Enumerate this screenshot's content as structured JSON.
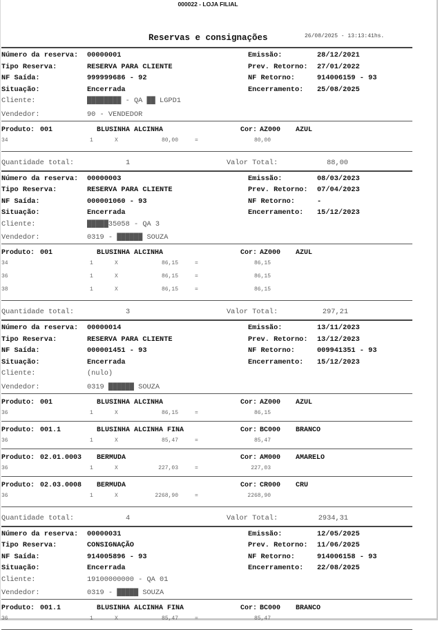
{
  "header": {
    "store": "000022 - LOJA FILIAL",
    "title": "Reservas e consignações",
    "timestamp": "26/08/2025 - 13:13:41hs."
  },
  "labels": {
    "numero": "Número da reserva:",
    "tipo": "Tipo Reserva:",
    "nf_saida": "NF Saída:",
    "situacao": "Situação:",
    "cliente": "Cliente:",
    "vendedor": "Vendedor:",
    "emissao": "Emissão:",
    "prev_retorno": "Prev. Retorno:",
    "nf_retorno": "NF Retorno:",
    "encerramento": "Encerramento:",
    "produto": "Produto:",
    "cor": "Cor:",
    "qtd_total": "Quantidade total:",
    "valor_total": "Valor Total:",
    "x": "X",
    "eq": "="
  },
  "reservas": [
    {
      "numero": "00000001",
      "tipo": "RESERVA PARA CLIENTE",
      "nf_saida": "999999686 - 92",
      "situacao": "Encerrada",
      "cliente": "████████ - QA ██ LGPD1",
      "vendedor": "90 - VENDEDOR",
      "emissao": "28/12/2021",
      "prev_retorno": "27/01/2022",
      "nf_retorno": "914006159 - 93",
      "encerramento": "25/08/2025",
      "produtos": [
        {
          "codigo": "001",
          "descricao": "BLUSINHA ALCINHA",
          "cor_codigo": "AZ000",
          "cor_nome": "AZUL",
          "itens": [
            {
              "tamanho": "34",
              "qtd": "1",
              "preco": "80,00",
              "total": "80,00"
            }
          ]
        }
      ],
      "qtd_total": "1",
      "valor_total": "88,00"
    },
    {
      "numero": "00000003",
      "tipo": "RESERVA PARA CLIENTE",
      "nf_saida": "000001060 - 93",
      "situacao": "Encerrada",
      "cliente": "█████35058 - QA 3",
      "vendedor": "0319 - ██████ SOUZA",
      "emissao": "08/03/2023",
      "prev_retorno": "07/04/2023",
      "nf_retorno": "-",
      "encerramento": "15/12/2023",
      "produtos": [
        {
          "codigo": "001",
          "descricao": "BLUSINHA ALCINHA",
          "cor_codigo": "AZ000",
          "cor_nome": "AZUL",
          "itens": [
            {
              "tamanho": "34",
              "qtd": "1",
              "preco": "86,15",
              "total": "86,15"
            },
            {
              "tamanho": "36",
              "qtd": "1",
              "preco": "86,15",
              "total": "86,15"
            },
            {
              "tamanho": "38",
              "qtd": "1",
              "preco": "86,15",
              "total": "86,15"
            }
          ]
        }
      ],
      "qtd_total": "3",
      "valor_total": "297,21"
    },
    {
      "numero": "00000014",
      "tipo": "RESERVA PARA CLIENTE",
      "nf_saida": "000001451 - 93",
      "situacao": "Encerrada",
      "cliente": "(nulo)",
      "vendedor": "0319 ██████ SOUZA",
      "emissao": "13/11/2023",
      "prev_retorno": "13/12/2023",
      "nf_retorno": "009941351 - 93",
      "encerramento": "15/12/2023",
      "produtos": [
        {
          "codigo": "001",
          "descricao": "BLUSINHA ALCINHA",
          "cor_codigo": "AZ000",
          "cor_nome": "AZUL",
          "itens": [
            {
              "tamanho": "36",
              "qtd": "1",
              "preco": "86,15",
              "total": "86,15"
            }
          ]
        },
        {
          "codigo": "001.1",
          "descricao": "BLUSINHA ALCINHA FINA",
          "cor_codigo": "BC000",
          "cor_nome": "BRANCO",
          "itens": [
            {
              "tamanho": "36",
              "qtd": "1",
              "preco": "85,47",
              "total": "85,47"
            }
          ]
        },
        {
          "codigo": "02.01.0003",
          "descricao": "BERMUDA",
          "cor_codigo": "AM000",
          "cor_nome": "AMARELO",
          "itens": [
            {
              "tamanho": "36",
              "qtd": "1",
              "preco": "227,03",
              "total": "227,03"
            }
          ]
        },
        {
          "codigo": "02.03.0008",
          "descricao": "BERMUDA",
          "cor_codigo": "CR000",
          "cor_nome": "CRU",
          "itens": [
            {
              "tamanho": "36",
              "qtd": "1",
              "preco": "2268,90",
              "total": "2268,90"
            }
          ]
        }
      ],
      "qtd_total": "4",
      "valor_total": "2934,31"
    },
    {
      "numero": "00000031",
      "tipo": "CONSIGNAÇÃO",
      "nf_saida": "914005896 - 93",
      "situacao": "Encerrada",
      "cliente": "19100000000 - QA 01",
      "vendedor": "0319 - █████ SOUZA",
      "emissao": "12/05/2025",
      "prev_retorno": "11/06/2025",
      "nf_retorno": "914006158 - 93",
      "encerramento": "22/08/2025",
      "produtos": [
        {
          "codigo": "001.1",
          "descricao": "BLUSINHA ALCINHA FINA",
          "cor_codigo": "BC000",
          "cor_nome": "BRANCO",
          "itens": [
            {
              "tamanho": "36",
              "qtd": "1",
              "preco": "85,47",
              "total": "85,47"
            }
          ]
        }
      ]
    }
  ]
}
